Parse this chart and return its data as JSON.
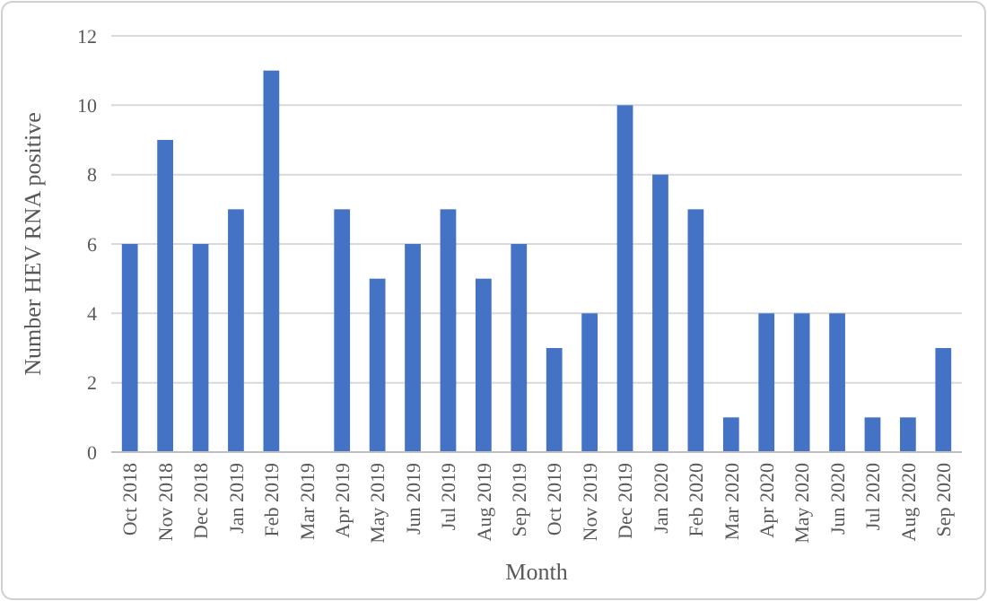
{
  "chart_data": {
    "type": "bar",
    "xlabel": "Month",
    "ylabel": "Number HEV RNA positive",
    "categories": [
      "Oct 2018",
      "Nov 2018",
      "Dec 2018",
      "Jan 2019",
      "Feb 2019",
      "Mar 2019",
      "Apr 2019",
      "May 2019",
      "Jun 2019",
      "Jul 2019",
      "Aug 2019",
      "Sep 2019",
      "Oct 2019",
      "Nov 2019",
      "Dec 2019",
      "Jan 2020",
      "Feb 2020",
      "Mar 2020",
      "Apr 2020",
      "May 2020",
      "Jun 2020",
      "Jul 2020",
      "Aug 2020",
      "Sep 2020"
    ],
    "values": [
      6,
      9,
      6,
      7,
      11,
      0,
      7,
      5,
      6,
      7,
      5,
      6,
      3,
      4,
      10,
      8,
      7,
      1,
      4,
      4,
      4,
      1,
      1,
      3
    ],
    "color": "#4472c4",
    "ylim": [
      0,
      12
    ],
    "yticks": [
      0,
      2,
      4,
      6,
      8,
      10,
      12
    ],
    "grid": "y"
  }
}
